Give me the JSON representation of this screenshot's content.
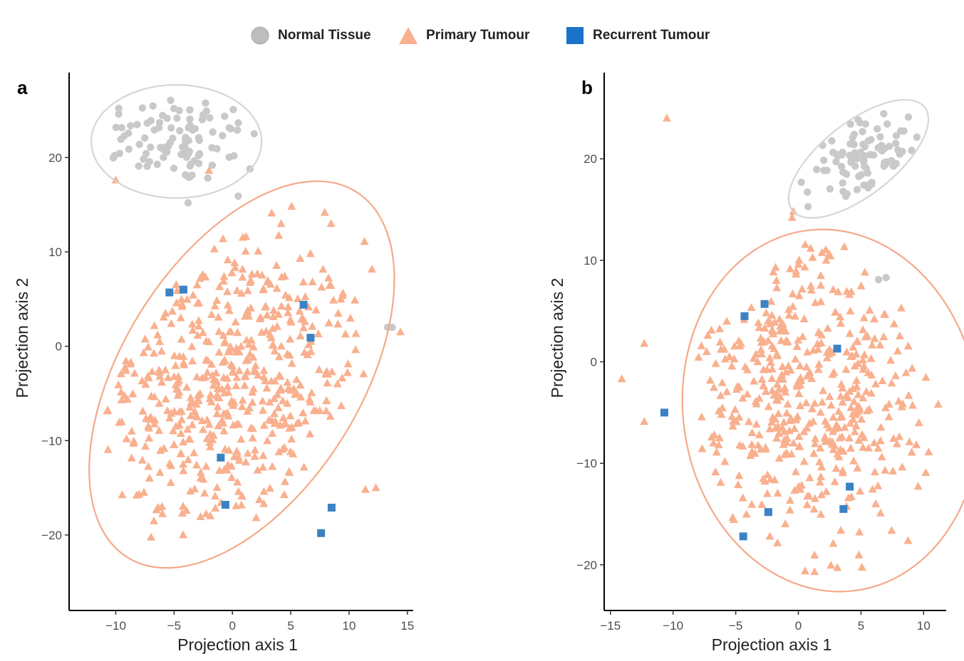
{
  "legend": {
    "items": [
      {
        "name": "normal",
        "label": "Normal Tissue",
        "shape": "circle",
        "color": "#bdbdbd"
      },
      {
        "name": "primary",
        "label": "Primary Tumour",
        "shape": "triangle",
        "color": "#f8b08e"
      },
      {
        "name": "recurrent",
        "label": "Recurrent Tumour",
        "shape": "square",
        "color": "#1a73c9"
      }
    ]
  },
  "colors": {
    "normal": "#c9c9c9",
    "primary": "#f9b08f",
    "recurrent": "#3b82c4",
    "ellipse_normal": "#d6d6d6",
    "ellipse_primary": "#f5a98a"
  },
  "chart_data": [
    {
      "panel": "a",
      "type": "scatter",
      "xlabel": "Projection axis 1",
      "ylabel": "Projection axis 2",
      "xlim": [
        -14,
        15.5
      ],
      "ylim": [
        -28,
        29
      ],
      "xticks": [
        -10,
        -5,
        0,
        5,
        10,
        15
      ],
      "yticks": [
        -20,
        -10,
        0,
        10,
        20
      ],
      "tick_labels_x": [
        "−10",
        "−5",
        "0",
        "5",
        "10",
        "15"
      ],
      "tick_labels_y": [
        "−20",
        "−10",
        "0",
        "10",
        "20"
      ],
      "ellipses": [
        {
          "group": "normal",
          "cx": -4.8,
          "cy": 21.7,
          "rx": 7.3,
          "ry": 6.0,
          "angle_deg": 0
        },
        {
          "group": "primary",
          "cx": 0.8,
          "cy": -3.0,
          "rx": 18.5,
          "ry": 12.6,
          "angle_deg": -58
        }
      ],
      "series": [
        {
          "name": "Normal Tissue",
          "group": "normal",
          "n": 95,
          "center": [
            -4.8,
            22
          ],
          "spread": [
            3.7,
            2.4
          ],
          "extra": [
            [
              13.3,
              2.0
            ],
            [
              13.7,
              2.0
            ],
            [
              0.5,
              15.9
            ],
            [
              -3.8,
              15.2
            ],
            [
              1.5,
              18.8
            ]
          ]
        },
        {
          "name": "Primary Tumour",
          "group": "primary",
          "n": 520,
          "center": [
            -0.3,
            -4.5
          ],
          "spread": [
            6.0,
            8.0
          ],
          "extra": [
            [
              -10,
              17.6
            ],
            [
              -2,
              18.6
            ],
            [
              14.4,
              1.5
            ],
            [
              12.3,
              -15
            ],
            [
              11.4,
              -15.2
            ]
          ]
        },
        {
          "name": "Recurrent Tumour",
          "group": "recurrent",
          "points": [
            [
              -5.4,
              5.7
            ],
            [
              -4.2,
              6.0
            ],
            [
              6.1,
              4.4
            ],
            [
              6.7,
              0.9
            ],
            [
              -1.0,
              -11.8
            ],
            [
              -0.6,
              -16.8
            ],
            [
              8.5,
              -17.1
            ],
            [
              7.6,
              -19.8
            ]
          ]
        }
      ]
    },
    {
      "panel": "b",
      "type": "scatter",
      "xlabel": "Projection axis 1",
      "ylabel": "Projection axis 2",
      "xlim": [
        -15.5,
        11.8
      ],
      "ylim": [
        -24.5,
        28.5
      ],
      "xticks": [
        -15,
        -10,
        -5,
        0,
        5,
        10
      ],
      "yticks": [
        -20,
        -10,
        0,
        10,
        20
      ],
      "tick_labels_x": [
        "−15",
        "−10",
        "−5",
        "0",
        "5",
        "10"
      ],
      "tick_labels_y": [
        "−20",
        "−10",
        "0",
        "10",
        "20"
      ],
      "ellipses": [
        {
          "group": "normal",
          "cx": 4.8,
          "cy": 20.0,
          "rx": 6.7,
          "ry": 3.6,
          "angle_deg": -38
        },
        {
          "group": "primary",
          "cx": 2.6,
          "cy": -4.8,
          "rx": 11.8,
          "ry": 17.9,
          "angle_deg": -8
        }
      ],
      "series": [
        {
          "name": "Normal Tissue",
          "group": "normal",
          "n": 90,
          "center": [
            4.8,
            20.0
          ],
          "spread": [
            3.6,
            2.3
          ],
          "extra": [
            [
              6.4,
              8.1
            ],
            [
              7.0,
              8.3
            ]
          ]
        },
        {
          "name": "Primary Tumour",
          "group": "primary",
          "n": 470,
          "center": [
            0.6,
            -3.2
          ],
          "spread": [
            5.0,
            7.0
          ],
          "extra": [
            [
              -10.5,
              24.0
            ],
            [
              -0.4,
              14.8
            ],
            [
              -0.5,
              14.2
            ],
            [
              -14.1,
              -1.7
            ],
            [
              -12.3,
              1.8
            ],
            [
              -12.3,
              -5.9
            ],
            [
              10.4,
              -8.9
            ]
          ]
        },
        {
          "name": "Recurrent Tumour",
          "group": "recurrent",
          "points": [
            [
              -4.3,
              4.5
            ],
            [
              -2.7,
              5.7
            ],
            [
              3.1,
              1.3
            ],
            [
              -10.7,
              -5.0
            ],
            [
              4.1,
              -12.3
            ],
            [
              3.6,
              -14.5
            ],
            [
              -2.4,
              -14.8
            ],
            [
              -4.4,
              -17.2
            ]
          ]
        }
      ]
    }
  ]
}
